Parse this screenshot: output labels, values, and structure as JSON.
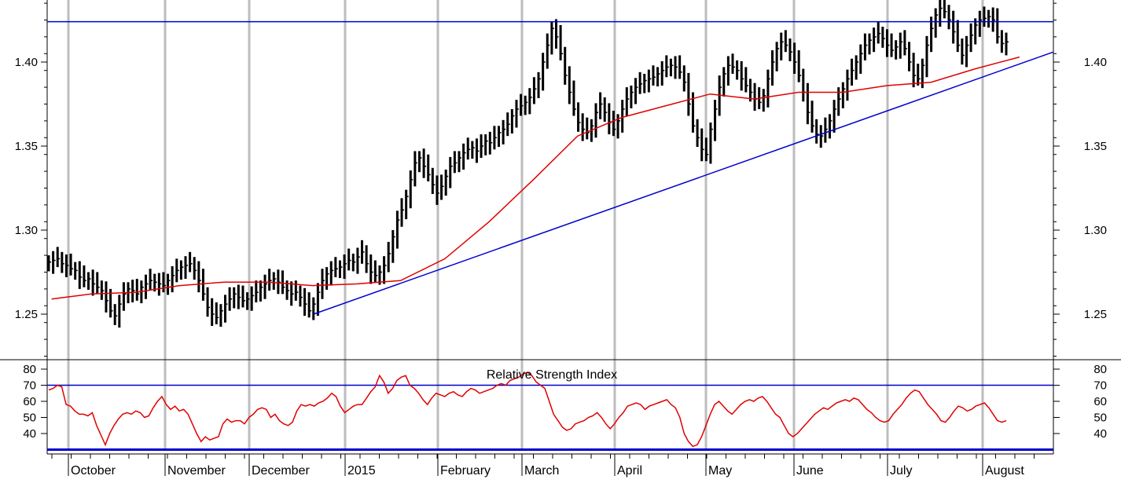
{
  "chart_data": {
    "type": "line",
    "x_axis_labels": [
      "October",
      "November",
      "December",
      "2015",
      "February",
      "March",
      "April",
      "May",
      "June",
      "July",
      "August"
    ],
    "price_panel": {
      "series_style": "price bars (high-low-close)",
      "y_ticks": [
        1.25,
        1.3,
        1.35,
        1.4
      ],
      "y_tick_labels": [
        "1.25",
        "1.30",
        "1.35",
        "1.40"
      ],
      "ylim": [
        1.22,
        1.44
      ],
      "price_series": [
        1.281,
        1.282,
        1.283,
        1.28,
        1.279,
        1.277,
        1.276,
        1.272,
        1.27,
        1.271,
        1.268,
        1.266,
        1.264,
        1.258,
        1.252,
        1.249,
        1.256,
        1.262,
        1.265,
        1.264,
        1.262,
        1.266,
        1.268,
        1.27,
        1.269,
        1.268,
        1.267,
        1.27,
        1.273,
        1.276,
        1.278,
        1.279,
        1.28,
        1.276,
        1.27,
        1.262,
        1.254,
        1.25,
        1.248,
        1.252,
        1.256,
        1.259,
        1.262,
        1.26,
        1.258,
        1.259,
        1.261,
        1.263,
        1.266,
        1.268,
        1.27,
        1.271,
        1.269,
        1.266,
        1.264,
        1.262,
        1.263,
        1.26,
        1.256,
        1.252,
        1.256,
        1.263,
        1.27,
        1.274,
        1.276,
        1.277,
        1.278,
        1.28,
        1.282,
        1.281,
        1.284,
        1.287,
        1.28,
        1.275,
        1.273,
        1.275,
        1.279,
        1.286,
        1.296,
        1.306,
        1.312,
        1.32,
        1.33,
        1.34,
        1.343,
        1.338,
        1.333,
        1.327,
        1.322,
        1.326,
        1.332,
        1.338,
        1.34,
        1.343,
        1.346,
        1.348,
        1.349,
        1.347,
        1.35,
        1.353,
        1.352,
        1.355,
        1.358,
        1.36,
        1.363,
        1.368,
        1.372,
        1.374,
        1.376,
        1.379,
        1.384,
        1.39,
        1.4,
        1.41,
        1.42,
        1.415,
        1.405,
        1.392,
        1.382,
        1.372,
        1.364,
        1.36,
        1.358,
        1.362,
        1.37,
        1.375,
        1.37,
        1.364,
        1.36,
        1.365,
        1.372,
        1.378,
        1.382,
        1.385,
        1.387,
        1.389,
        1.39,
        1.391,
        1.393,
        1.395,
        1.397,
        1.398,
        1.397,
        1.394,
        1.388,
        1.375,
        1.362,
        1.355,
        1.348,
        1.345,
        1.36,
        1.372,
        1.385,
        1.393,
        1.398,
        1.397,
        1.395,
        1.39,
        1.386,
        1.382,
        1.378,
        1.376,
        1.38,
        1.39,
        1.4,
        1.408,
        1.412,
        1.41,
        1.406,
        1.4,
        1.392,
        1.382,
        1.37,
        1.362,
        1.357,
        1.356,
        1.36,
        1.365,
        1.372,
        1.378,
        1.384,
        1.39,
        1.395,
        1.4,
        1.405,
        1.41,
        1.413,
        1.415,
        1.417,
        1.414,
        1.41,
        1.407,
        1.409,
        1.412,
        1.408,
        1.4,
        1.392,
        1.39,
        1.398,
        1.41,
        1.42,
        1.428,
        1.432,
        1.43,
        1.425,
        1.418,
        1.41,
        1.404,
        1.41,
        1.416,
        1.422,
        1.425,
        1.426,
        1.427,
        1.425,
        1.415,
        1.411,
        1.412
      ],
      "moving_average": {
        "color": "#e00000",
        "points_x": [
          1,
          10,
          20,
          30,
          40,
          50,
          60,
          70,
          80,
          90,
          100,
          110,
          120,
          130,
          140,
          150,
          160,
          170,
          180,
          190,
          200,
          210,
          220
        ],
        "points_y": [
          1.259,
          1.262,
          1.263,
          1.267,
          1.269,
          1.269,
          1.267,
          1.268,
          1.27,
          1.283,
          1.305,
          1.33,
          1.356,
          1.367,
          1.374,
          1.381,
          1.378,
          1.382,
          1.382,
          1.386,
          1.388,
          1.396,
          1.403
        ]
      },
      "horizontal_resistance": {
        "value": 1.424,
        "color": "#0000cc"
      },
      "support_trendline": {
        "color": "#0000cc",
        "from": {
          "x": 60,
          "y": 1.25
        },
        "to": {
          "x": 240,
          "y": 1.406
        }
      }
    },
    "rsi_panel": {
      "title": "Relative Strength Index",
      "y_ticks": [
        40,
        50,
        60,
        70,
        80
      ],
      "y_tick_labels": [
        "40",
        "50",
        "60",
        "70",
        "80"
      ],
      "ylim": [
        30,
        82
      ],
      "reference_lines": [
        70,
        30
      ],
      "line_color": "#e00000",
      "reference_color": "#0000cc",
      "rsi_series": [
        67,
        68,
        70,
        69,
        58,
        57,
        54,
        52,
        52,
        51,
        53,
        45,
        39,
        33,
        40,
        45,
        49,
        52,
        53,
        52,
        54,
        53,
        50,
        51,
        56,
        60,
        63,
        58,
        55,
        57,
        54,
        55,
        52,
        46,
        40,
        35,
        38,
        36,
        37,
        38,
        46,
        49,
        47,
        48,
        48,
        46,
        50,
        52,
        55,
        56,
        55,
        50,
        52,
        48,
        46,
        45,
        47,
        54,
        58,
        57,
        58,
        57,
        59,
        60,
        62,
        65,
        63,
        57,
        53,
        55,
        57,
        58,
        58,
        62,
        66,
        69,
        76,
        72,
        65,
        68,
        73,
        75,
        76,
        70,
        68,
        65,
        61,
        58,
        62,
        65,
        64,
        63,
        65,
        66,
        64,
        63,
        66,
        68,
        67,
        65,
        66,
        67,
        68,
        70,
        71,
        70,
        73,
        74,
        75,
        77,
        78,
        76,
        72,
        70,
        68,
        60,
        52,
        48,
        44,
        42,
        43,
        46,
        47,
        48,
        50,
        51,
        53,
        50,
        46,
        43,
        46,
        50,
        53,
        57,
        58,
        59,
        58,
        55,
        57,
        58,
        59,
        60,
        61,
        58,
        56,
        50,
        40,
        35,
        32,
        33,
        38,
        45,
        52,
        58,
        60,
        57,
        54,
        52,
        55,
        58,
        60,
        61,
        60,
        62,
        63,
        60,
        56,
        52,
        50,
        45,
        40,
        38,
        40,
        43,
        46,
        49,
        52,
        54,
        56,
        55,
        57,
        59,
        60,
        61,
        60,
        62,
        61,
        58,
        55,
        53,
        50,
        48,
        47,
        48,
        52,
        55,
        58,
        62,
        65,
        67,
        66,
        62,
        58,
        55,
        52,
        48,
        47,
        50,
        54,
        57,
        56,
        54,
        55,
        57,
        58,
        59,
        56,
        52,
        48,
        47,
        48
      ]
    }
  }
}
